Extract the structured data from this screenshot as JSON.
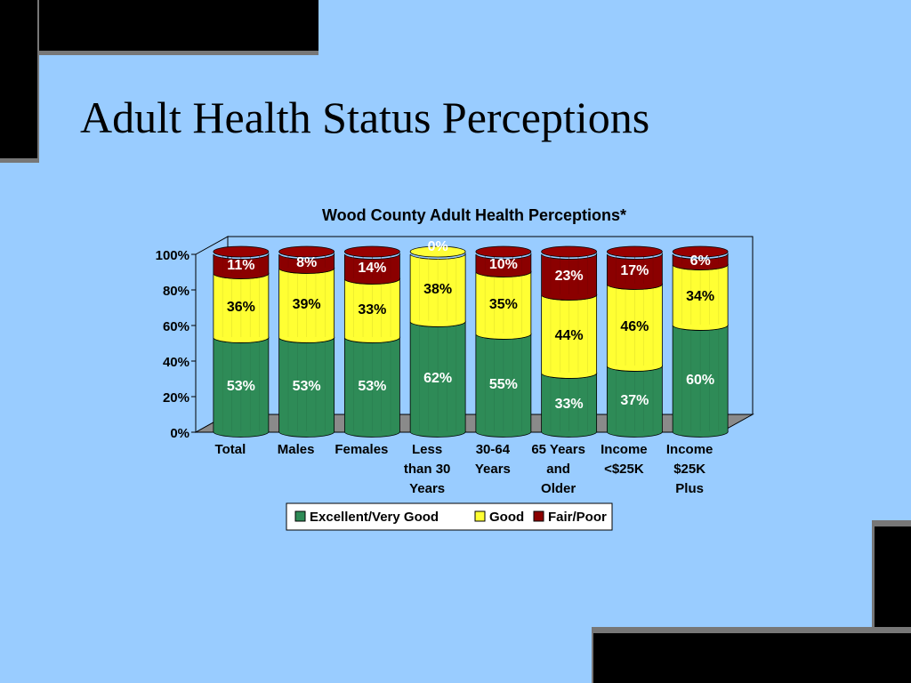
{
  "slide": {
    "title": "Adult Health Status Perceptions"
  },
  "chart_data": {
    "type": "bar",
    "stacked": true,
    "percent_scale": true,
    "title": "Wood County Adult Health Perceptions*",
    "xlabel": "",
    "ylabel": "",
    "ylim": [
      0,
      100
    ],
    "yticks": [
      "0%",
      "20%",
      "40%",
      "60%",
      "80%",
      "100%"
    ],
    "legend_position": "bottom",
    "categories": [
      [
        "Total"
      ],
      [
        "Males"
      ],
      [
        "Females"
      ],
      [
        "Less",
        "than 30",
        "Years"
      ],
      [
        "30-64",
        "Years"
      ],
      [
        "65 Years",
        "and",
        "Older"
      ],
      [
        "Income",
        "<$25K"
      ],
      [
        "Income",
        "$25K",
        "Plus"
      ]
    ],
    "series": [
      {
        "name": "Excellent/Very Good",
        "color": "#2e8b57",
        "values": [
          53,
          53,
          53,
          62,
          55,
          33,
          37,
          60
        ],
        "labels": [
          "53%",
          "53%",
          "53%",
          "62%",
          "55%",
          "33%",
          "37%",
          "60%"
        ]
      },
      {
        "name": "Good",
        "color": "#ffff33",
        "values": [
          36,
          39,
          33,
          38,
          35,
          44,
          46,
          34
        ],
        "labels": [
          "36%",
          "39%",
          "33%",
          "38%",
          "35%",
          "44%",
          "46%",
          "34%"
        ]
      },
      {
        "name": "Fair/Poor",
        "color": "#8b0000",
        "values": [
          11,
          8,
          14,
          0,
          10,
          23,
          17,
          6
        ],
        "labels": [
          "11%",
          "8%",
          "14%",
          "0%",
          "10%",
          "23%",
          "17%",
          "6%"
        ]
      }
    ]
  }
}
